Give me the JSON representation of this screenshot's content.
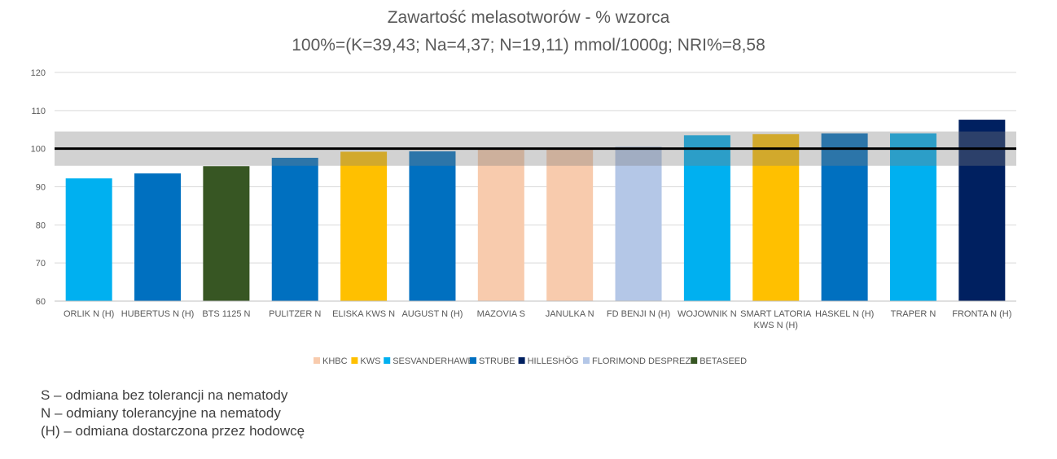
{
  "chart_data": {
    "type": "bar",
    "title": "Zawartość melasotworów - % wzorca",
    "subtitle": "100%=(K=39,43; Na=4,37; N=19,11) mmol/1000g; NRI%=8,58",
    "ylim": [
      60,
      120
    ],
    "yticks": [
      60,
      70,
      80,
      90,
      100,
      110,
      120
    ],
    "reference_line": 100,
    "tolerance_band": [
      95.5,
      104.5
    ],
    "grid": true,
    "legend_position": "bottom",
    "categories": [
      "ORLIK N (H)",
      "HUBERTUS N (H)",
      "BTS 1125 N",
      "PULITZER N",
      "ELISKA KWS N",
      "AUGUST N (H)",
      "MAZOVIA S",
      "JANULKA N",
      "FD BENJI N (H)",
      "WOJOWNIK N",
      "SMART LATORIA KWS N (H)",
      "HASKEL N (H)",
      "TRAPER N",
      "FRONTA N (H)"
    ],
    "values": [
      92.2,
      93.5,
      95.4,
      97.6,
      99.2,
      99.3,
      100.0,
      100.0,
      100.5,
      103.5,
      103.8,
      104.0,
      104.0,
      107.6
    ],
    "breeders": [
      "SESVANDERHAWE",
      "STRUBE",
      "BETASEED",
      "STRUBE",
      "KWS",
      "STRUBE",
      "KHBC",
      "KHBC",
      "FLORIMOND DESPREZ",
      "SESVANDERHAWE",
      "KWS",
      "STRUBE",
      "SESVANDERHAWE",
      "HILLESHÖG"
    ],
    "legend": [
      {
        "name": "KHBC",
        "color": "#F8CBAD"
      },
      {
        "name": "KWS",
        "color": "#FFC000"
      },
      {
        "name": "SESVANDERHAWE",
        "color": "#00B0F0"
      },
      {
        "name": "STRUBE",
        "color": "#0070C0"
      },
      {
        "name": "HILLESHÖG",
        "color": "#002060"
      },
      {
        "name": "FLORIMOND DESPREZ",
        "color": "#B4C7E7"
      },
      {
        "name": "BETASEED",
        "color": "#375623"
      }
    ]
  },
  "notes": [
    "S – odmiana bez tolerancji na nematody",
    "N – odmiany tolerancyjne na nematody",
    "(H) – odmiana dostarczona przez hodowcę"
  ]
}
